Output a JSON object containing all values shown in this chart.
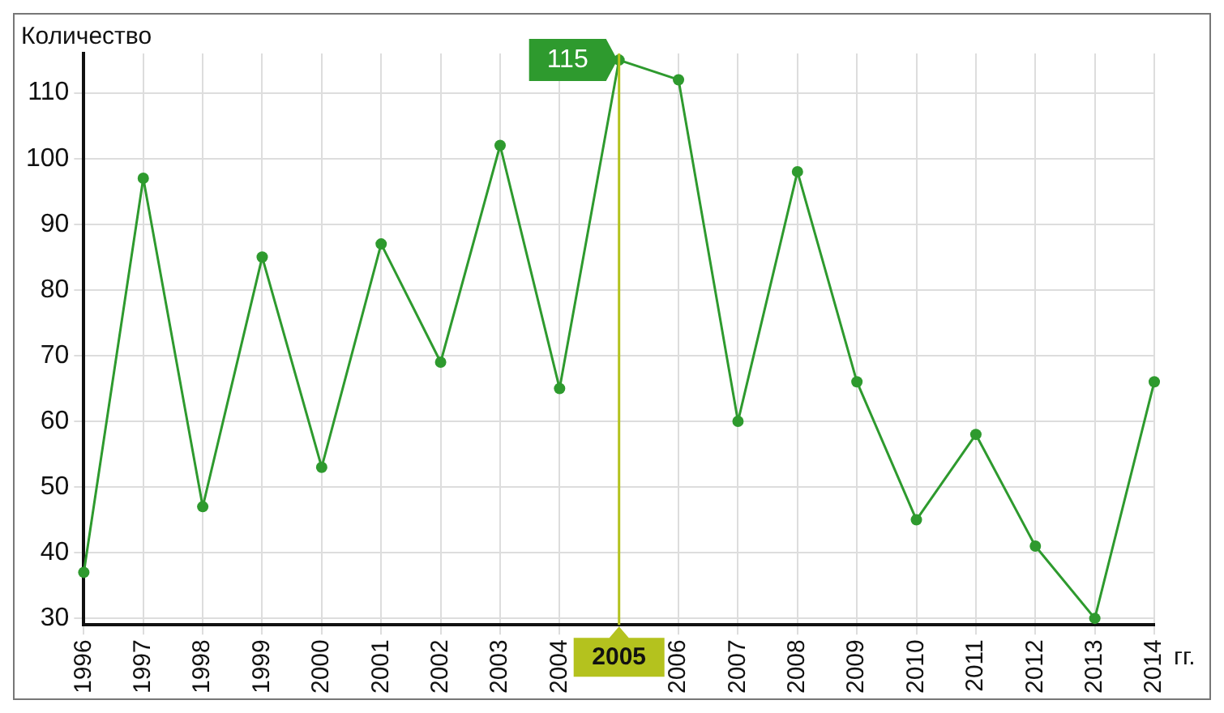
{
  "chart_data": {
    "type": "line",
    "ylabel": "Количество",
    "xlabel": "гг.",
    "categories": [
      "1996",
      "1997",
      "1998",
      "1999",
      "2000",
      "2001",
      "2002",
      "2003",
      "2004",
      "2005",
      "2006",
      "2007",
      "2008",
      "2009",
      "2010",
      "2011",
      "2012",
      "2013",
      "2014"
    ],
    "series": [
      {
        "color": "#2e9a2e",
        "values": [
          37,
          97,
          47,
          85,
          53,
          87,
          69,
          102,
          65,
          115,
          112,
          60,
          98,
          66,
          45,
          58,
          41,
          30,
          66
        ]
      }
    ],
    "ylim": [
      29,
      116
    ],
    "yticks": [
      30,
      40,
      50,
      60,
      70,
      80,
      90,
      100,
      110
    ],
    "ref_lines": [
      {
        "axis": "x",
        "value": "2005",
        "color": "#b4c21e"
      }
    ],
    "annotations": [
      {
        "text": "115",
        "x": "2005",
        "y": 115
      }
    ],
    "grid": true,
    "marker": "circle",
    "line_style": "solid",
    "legend": false
  }
}
